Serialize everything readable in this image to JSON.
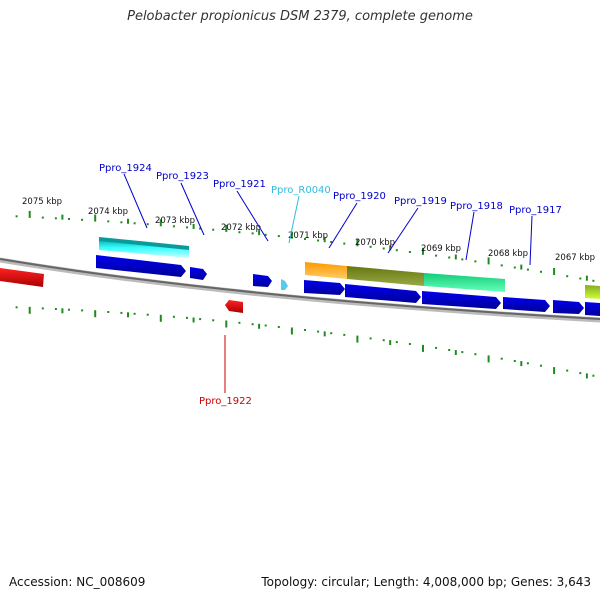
{
  "title": "Pelobacter propionicus DSM 2379, complete genome",
  "footer": {
    "accession": "Accession: NC_008609",
    "topology": "Topology: circular; Length: 4,008,000 bp; Genes: 3,643"
  },
  "colors": {
    "backbone": "#888888",
    "ticks": "#1f8a1f",
    "cds": "#0000dd",
    "rna_gene": "#dd0000",
    "label_blue": "#0000cc",
    "label_cyan": "#33bbdd",
    "label_red": "#cc0000"
  },
  "scale_labels": [
    "2075 kbp",
    "2074 kbp",
    "2073 kbp",
    "2072 kbp",
    "2071 kbp",
    "2070 kbp",
    "2069 kbp",
    "2068 kbp",
    "2067 kbp"
  ],
  "gene_labels": [
    {
      "name": "Ppro_1924",
      "color": "blue"
    },
    {
      "name": "Ppro_1923",
      "color": "blue"
    },
    {
      "name": "Ppro_1921",
      "color": "blue"
    },
    {
      "name": "Ppro_R0040",
      "color": "cyan"
    },
    {
      "name": "Ppro_1920",
      "color": "blue"
    },
    {
      "name": "Ppro_1919",
      "color": "blue"
    },
    {
      "name": "Ppro_1918",
      "color": "blue"
    },
    {
      "name": "Ppro_1917",
      "color": "blue"
    },
    {
      "name": "Ppro_1922",
      "color": "red"
    }
  ]
}
